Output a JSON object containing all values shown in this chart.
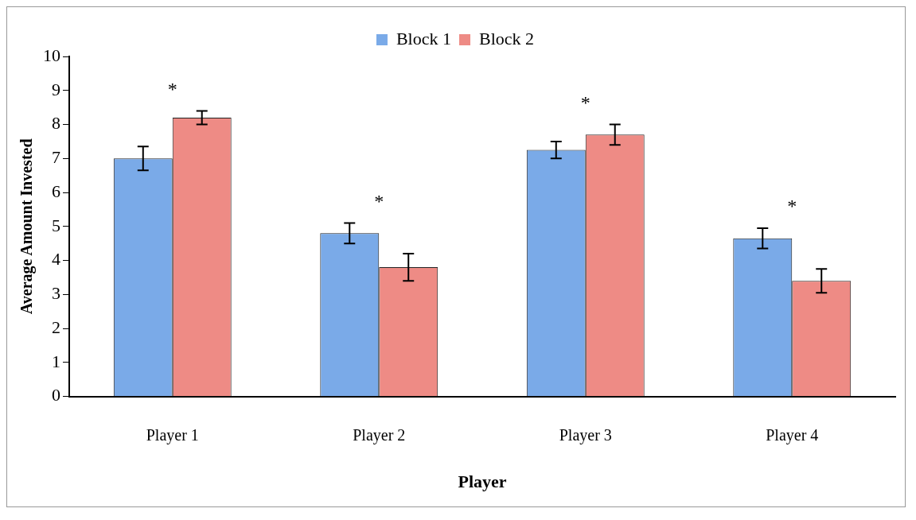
{
  "chart_data": {
    "type": "bar",
    "xlabel": "Player",
    "ylabel": "Average Amount Invested",
    "categories": [
      "Player 1",
      "Player 2",
      "Player 3",
      "Player 4"
    ],
    "series": [
      {
        "name": "Block 1",
        "color": "#7aaae8",
        "values": [
          7.0,
          4.8,
          7.25,
          4.65
        ],
        "errors": [
          0.35,
          0.3,
          0.25,
          0.3
        ]
      },
      {
        "name": "Block 2",
        "color": "#ee8b85",
        "values": [
          8.2,
          3.8,
          7.7,
          3.4
        ],
        "errors": [
          0.2,
          0.4,
          0.3,
          0.35
        ]
      }
    ],
    "ylim": [
      0,
      10
    ],
    "yticks": [
      0,
      1,
      2,
      3,
      4,
      5,
      6,
      7,
      8,
      9,
      10
    ],
    "grid": false,
    "legend": "top",
    "annotations": [
      "*",
      "*",
      "*",
      "*"
    ]
  }
}
